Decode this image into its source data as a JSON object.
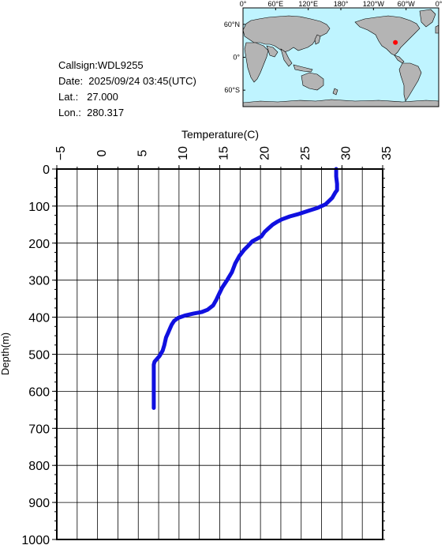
{
  "info": {
    "callsign": "Callsign:WDL9255",
    "date": "Date:  2025/09/24 03:45(UTC)",
    "lat": "Lat.:   27.000",
    "lon": "Lon.:  280.317"
  },
  "map": {
    "lon_labels": [
      "0°",
      "60°E",
      "120°E",
      "180°",
      "120°W",
      "60°W",
      "0°"
    ],
    "lat_labels": [
      "60°N",
      "0°",
      "60°S"
    ],
    "marker": {
      "lat": 27.0,
      "lon": 280.317,
      "color": "#ff0000"
    },
    "ocean_color": "#bff4ff",
    "land_color": "#b4b4b4"
  },
  "chart_data": {
    "type": "line",
    "xlabel": "Temperature(C)",
    "ylabel": "Depth(m)",
    "xlim": [
      -5,
      35
    ],
    "ylim": [
      0,
      1000
    ],
    "y_inverted": true,
    "x_axis_position": "top",
    "x_ticks": [
      -5,
      0,
      5,
      10,
      15,
      20,
      25,
      30,
      35
    ],
    "y_ticks": [
      0,
      100,
      200,
      300,
      400,
      500,
      600,
      700,
      800,
      900,
      1000
    ],
    "grid": true,
    "line_color": "#1010e0",
    "series": [
      {
        "x": [
          29.3,
          29.3,
          29.4,
          29.4,
          29.2,
          28.8,
          28.0,
          27.0,
          26.0,
          25.3,
          24.6,
          23.6,
          22.6,
          22.0,
          21.5,
          21.0,
          20.5,
          20.1,
          19.6,
          19.0,
          18.5,
          18.0,
          17.4,
          16.9,
          16.5,
          15.9,
          15.3,
          14.9,
          14.6,
          14.4,
          14.2,
          13.5,
          12.8,
          11.8,
          10.8,
          9.9,
          9.4,
          9.1,
          8.9,
          8.7,
          8.4,
          8.2,
          8.0,
          7.6,
          7.2,
          7.0,
          6.9,
          6.9,
          6.9,
          6.9,
          6.9
        ],
        "y": [
          0,
          20,
          40,
          57,
          63,
          78,
          95,
          105,
          112,
          117,
          122,
          128,
          136,
          143,
          150,
          160,
          170,
          182,
          188,
          195,
          207,
          218,
          235,
          255,
          278,
          300,
          320,
          338,
          352,
          360,
          368,
          380,
          386,
          390,
          395,
          402,
          410,
          420,
          430,
          440,
          455,
          475,
          490,
          505,
          515,
          520,
          528,
          560,
          600,
          630,
          645
        ]
      }
    ]
  }
}
